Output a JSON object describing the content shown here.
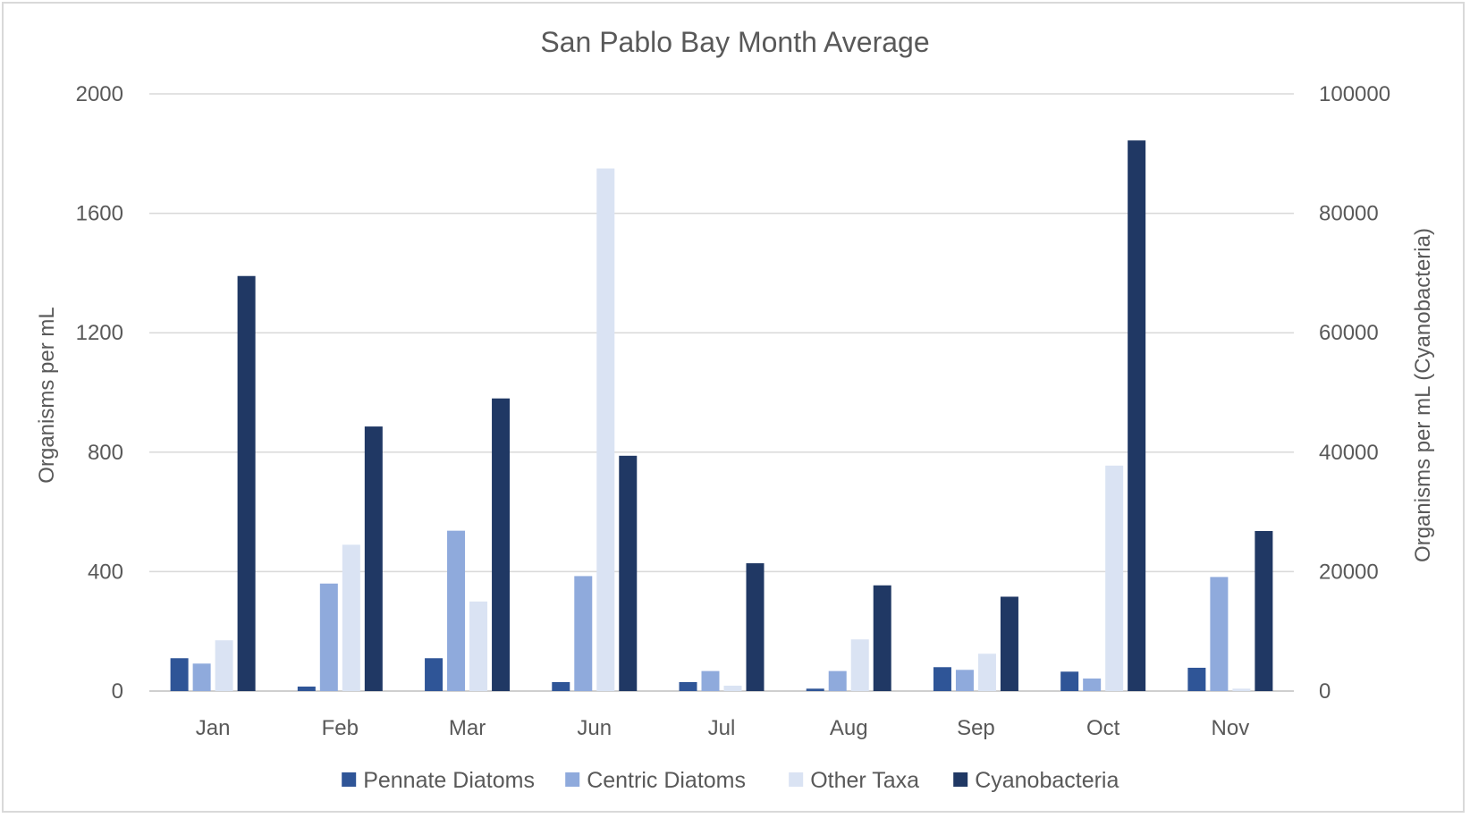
{
  "chart_data": {
    "type": "bar",
    "title": "San Pablo Bay Month Average",
    "categories": [
      "Jan",
      "Feb",
      "Mar",
      "Jun",
      "Jul",
      "Aug",
      "Sep",
      "Oct",
      "Nov"
    ],
    "ylabel": "Organisms per mL",
    "y2label": "Organisms per mL (Cyanobacteria)",
    "ylim": [
      0,
      2000
    ],
    "y2lim": [
      0,
      100000
    ],
    "yticks": [
      "0",
      "400",
      "800",
      "1200",
      "1600",
      "2000"
    ],
    "y2ticks": [
      "0",
      "20000",
      "40000",
      "60000",
      "80000",
      "100000"
    ],
    "grid": true,
    "legend_position": "bottom",
    "series": [
      {
        "name": "Pennate Diatoms",
        "axis": "left",
        "color": "#2f5597",
        "values": [
          110,
          15,
          110,
          30,
          30,
          8,
          80,
          65,
          78
        ]
      },
      {
        "name": "Centric Diatoms",
        "axis": "left",
        "color": "#8faadc",
        "values": [
          92,
          360,
          537,
          385,
          67,
          67,
          71,
          42,
          382
        ]
      },
      {
        "name": "Other Taxa",
        "axis": "left",
        "color": "#dae3f3",
        "values": [
          170,
          490,
          300,
          1750,
          18,
          173,
          125,
          755,
          8
        ]
      },
      {
        "name": "Cyanobacteria",
        "axis": "right",
        "color": "#203864",
        "values": [
          69500,
          44300,
          49000,
          39400,
          21400,
          17700,
          15800,
          92200,
          26800
        ]
      }
    ]
  }
}
